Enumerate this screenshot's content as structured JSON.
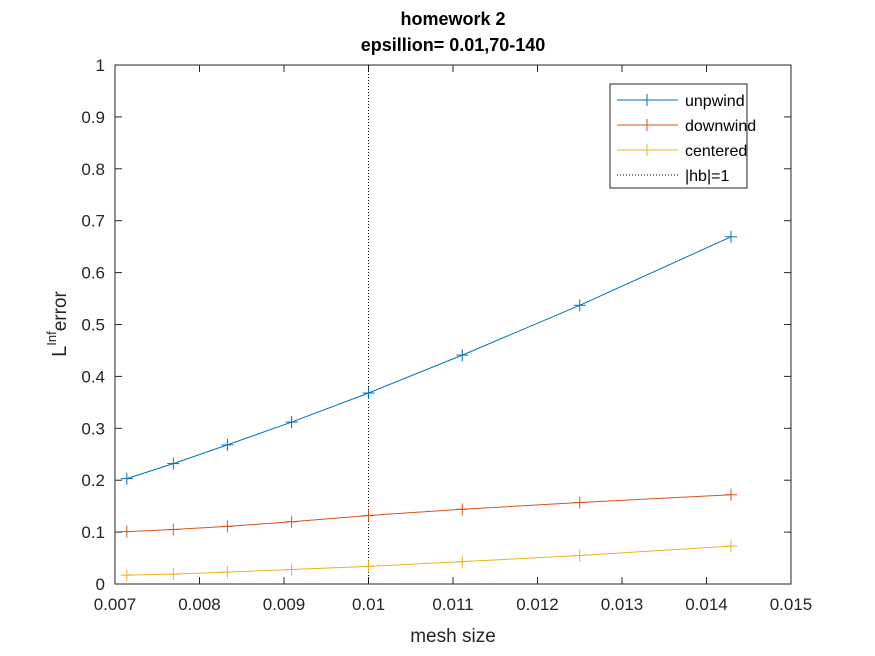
{
  "chart_data": {
    "type": "line",
    "title": "homework 2",
    "subtitle": "epsillion= 0.01,70-140",
    "xlabel": "mesh size",
    "ylabel_main": "L",
    "ylabel_sup": "Inf",
    "ylabel_rest": "error",
    "xlim": [
      0.007,
      0.015
    ],
    "ylim": [
      0,
      1
    ],
    "xticks": [
      "0.007",
      "0.008",
      "0.009",
      "0.01",
      "0.011",
      "0.012",
      "0.013",
      "0.014",
      "0.015"
    ],
    "yticks": [
      "0",
      "0.1",
      "0.2",
      "0.3",
      "0.4",
      "0.5",
      "0.6",
      "0.7",
      "0.8",
      "0.9",
      "1"
    ],
    "grid": false,
    "legend_position": "top-right",
    "x": [
      0.00714,
      0.00769,
      0.00833,
      0.00909,
      0.01,
      0.01111,
      0.0125,
      0.01429
    ],
    "series": [
      {
        "name": "unpwind",
        "color": "#0072BD",
        "marker": "+",
        "values": [
          0.203,
          0.232,
          0.268,
          0.312,
          0.368,
          0.441,
          0.537,
          0.669
        ]
      },
      {
        "name": "downwind",
        "color": "#D95319",
        "marker": "+",
        "values": [
          0.101,
          0.105,
          0.111,
          0.12,
          0.132,
          0.144,
          0.157,
          0.172
        ]
      },
      {
        "name": "centered",
        "color": "#EDB120",
        "marker": "+",
        "values": [
          0.017,
          0.019,
          0.023,
          0.028,
          0.034,
          0.043,
          0.055,
          0.073
        ]
      }
    ],
    "reference_line": {
      "name": "|hb|=1",
      "x": 0.01,
      "style": "dotted",
      "color": "#000000"
    }
  }
}
